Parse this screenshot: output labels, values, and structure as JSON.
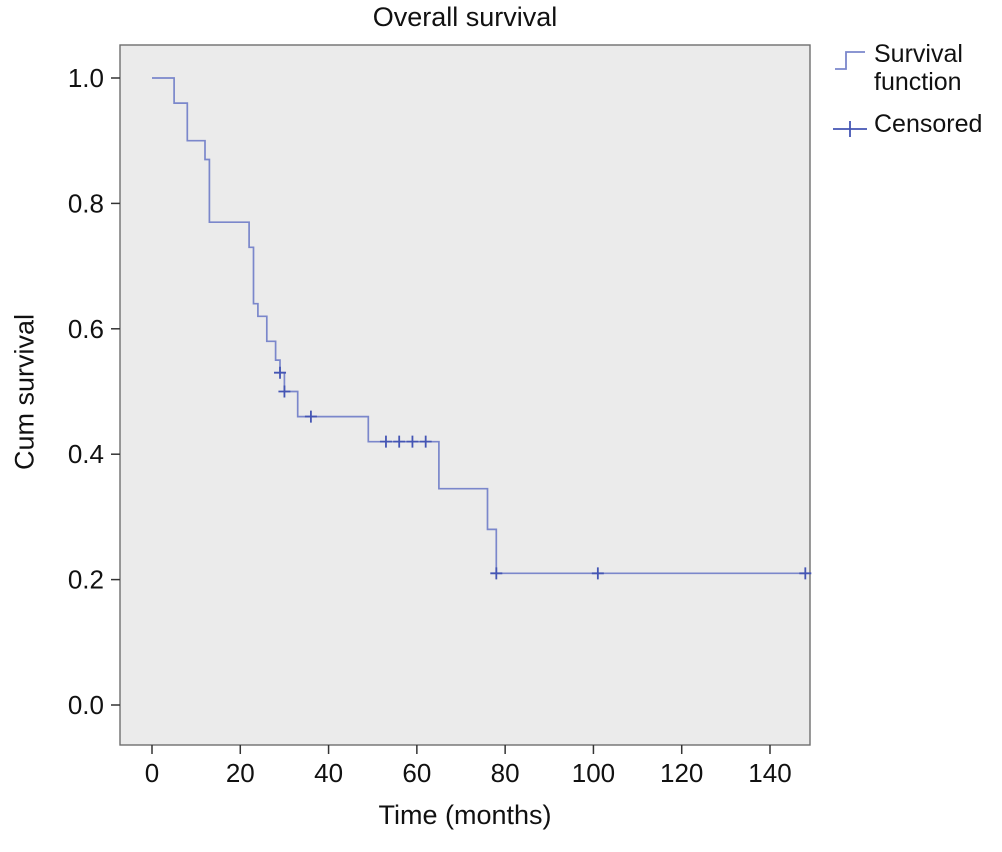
{
  "chart_data": {
    "type": "line",
    "subtype": "kaplan-meier-step",
    "title": "Overall survival",
    "xlabel": "Time (months)",
    "ylabel": "Cum survival",
    "xlim": [
      -7,
      149
    ],
    "ylim": [
      -0.06,
      1.05
    ],
    "grid": false,
    "x_ticks": [
      "0",
      "20",
      "40",
      "60",
      "80",
      "100",
      "120",
      "140"
    ],
    "y_ticks": [
      "0.0",
      "0.2",
      "0.4",
      "0.6",
      "0.8",
      "1.0"
    ],
    "legend_position": "top-right-outside",
    "legend": [
      {
        "label": "Survival function",
        "marker": "step-line"
      },
      {
        "label": "Censored",
        "marker": "plus-on-line"
      }
    ],
    "colors": {
      "plot_bg": "#ebebeb",
      "plot_border": "#6e6e6e",
      "tick": "#333333",
      "text": "#111111"
    },
    "series": [
      {
        "name": "Survival function",
        "color": "#7b87cb",
        "step_points": [
          [
            0,
            1.0
          ],
          [
            5,
            1.0
          ],
          [
            5,
            0.96
          ],
          [
            8,
            0.96
          ],
          [
            8,
            0.9
          ],
          [
            12,
            0.9
          ],
          [
            12,
            0.87
          ],
          [
            13,
            0.87
          ],
          [
            13,
            0.77
          ],
          [
            22,
            0.77
          ],
          [
            22,
            0.73
          ],
          [
            23,
            0.73
          ],
          [
            23,
            0.64
          ],
          [
            24,
            0.64
          ],
          [
            24,
            0.62
          ],
          [
            26,
            0.62
          ],
          [
            26,
            0.58
          ],
          [
            28,
            0.58
          ],
          [
            28,
            0.55
          ],
          [
            29,
            0.55
          ],
          [
            29,
            0.53
          ],
          [
            30,
            0.53
          ],
          [
            30,
            0.5
          ],
          [
            33,
            0.5
          ],
          [
            33,
            0.46
          ],
          [
            49,
            0.46
          ],
          [
            49,
            0.42
          ],
          [
            65,
            0.42
          ],
          [
            65,
            0.345
          ],
          [
            76,
            0.345
          ],
          [
            76,
            0.28
          ],
          [
            78,
            0.28
          ],
          [
            78,
            0.21
          ],
          [
            148,
            0.21
          ]
        ]
      }
    ],
    "censored": {
      "name": "Censored",
      "color": "#4455b4",
      "points": [
        [
          29,
          0.53
        ],
        [
          30,
          0.5
        ],
        [
          36,
          0.46
        ],
        [
          53,
          0.42
        ],
        [
          56,
          0.42
        ],
        [
          59,
          0.42
        ],
        [
          62,
          0.42
        ],
        [
          78,
          0.21
        ],
        [
          101,
          0.21
        ],
        [
          148,
          0.21
        ]
      ]
    }
  }
}
